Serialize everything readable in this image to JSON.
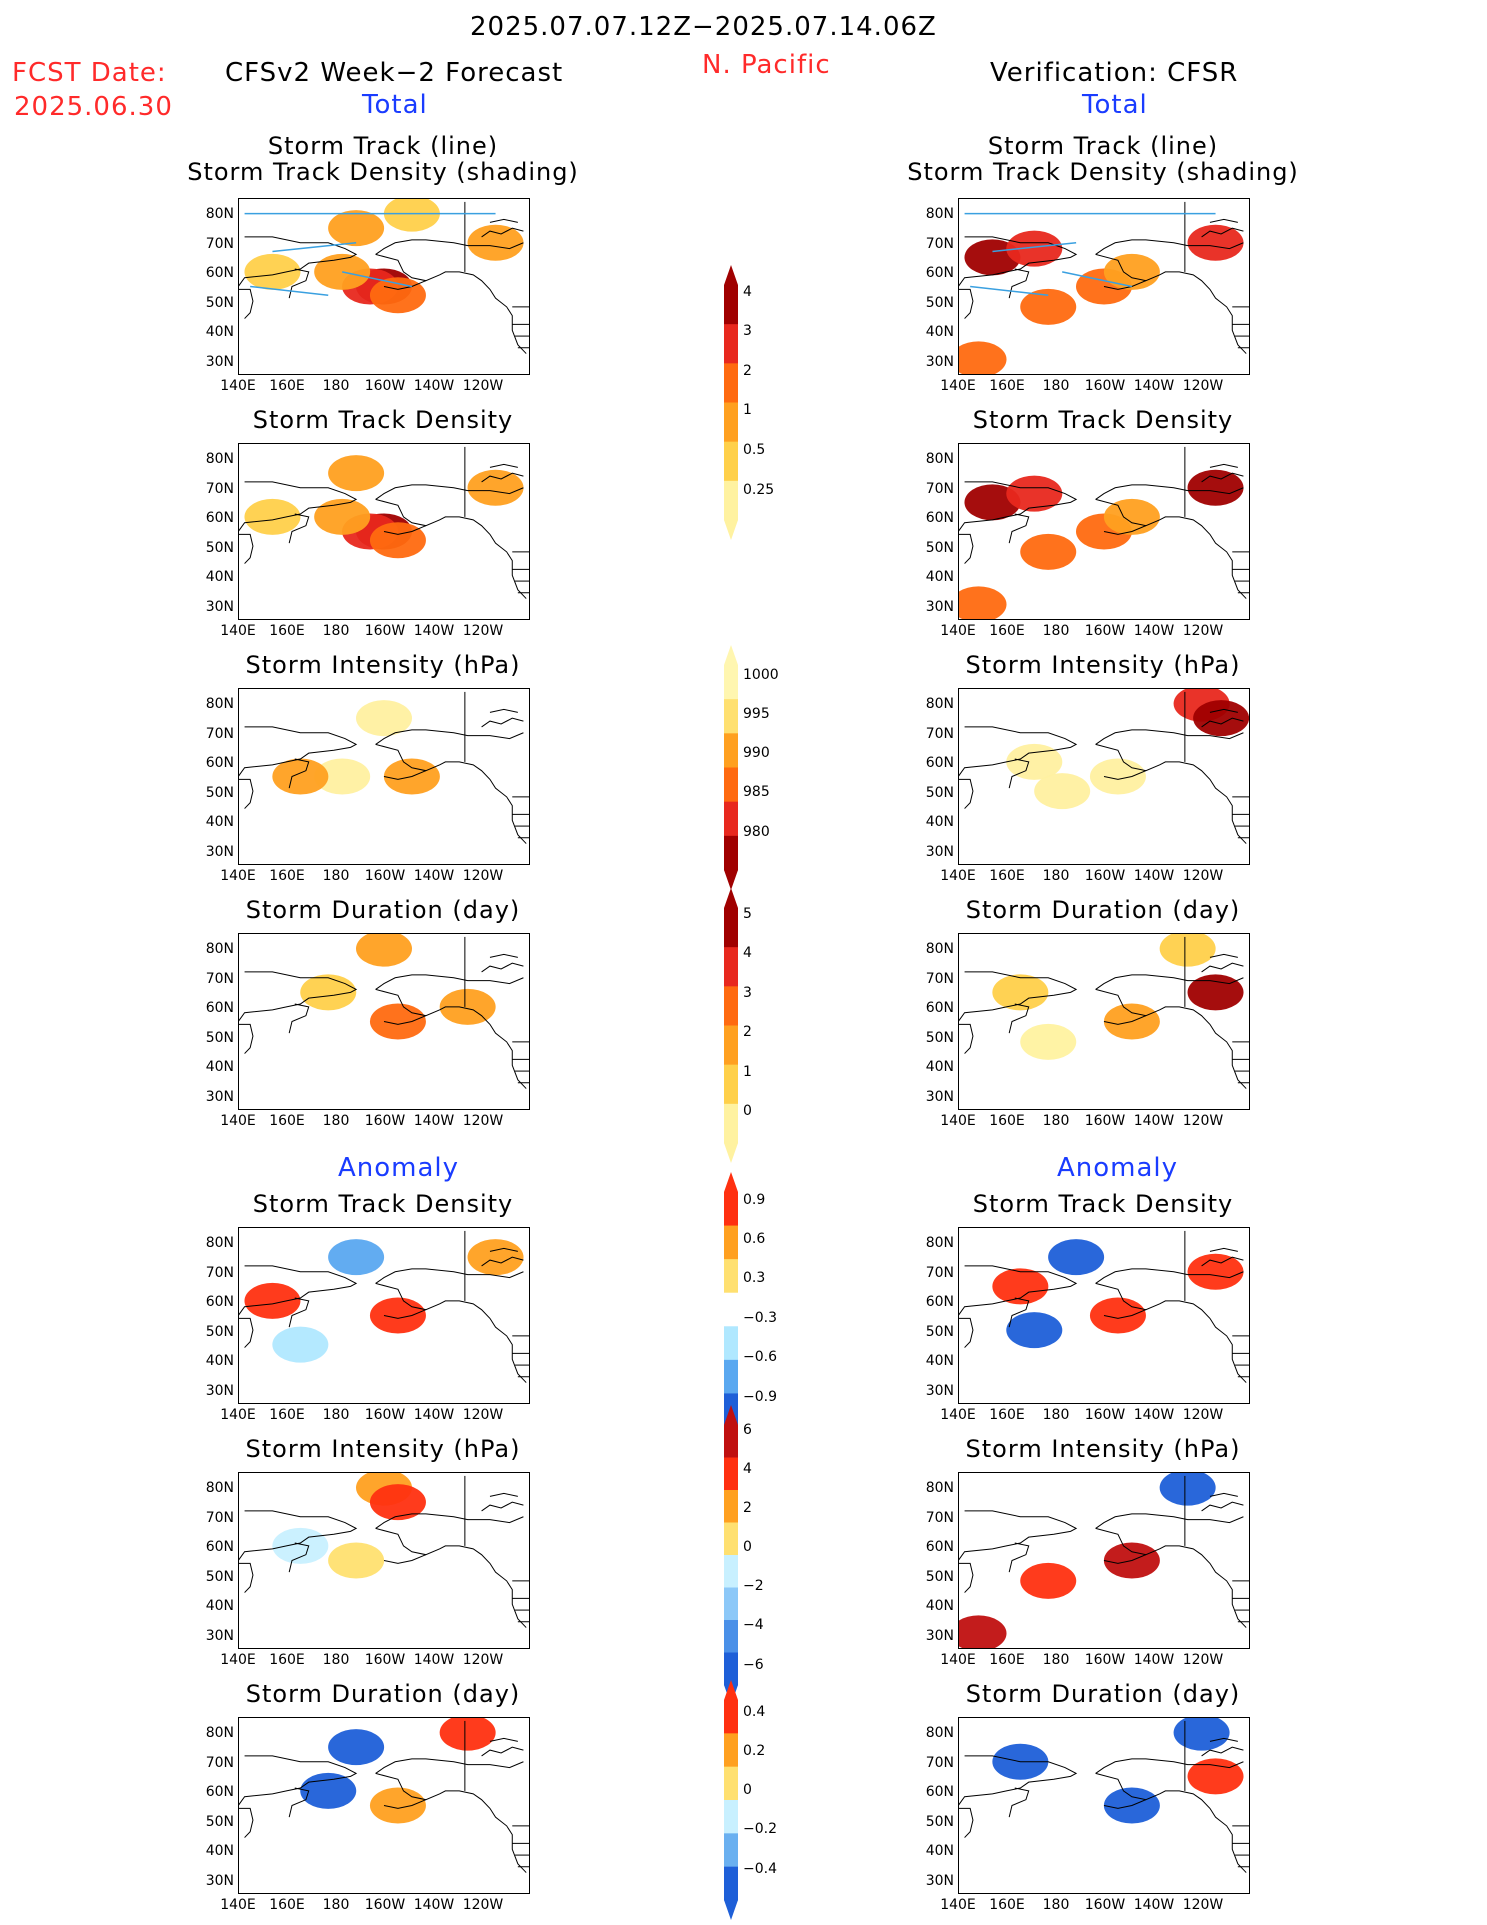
{
  "header": {
    "date_range": "2025.07.07.12Z−2025.07.14.06Z",
    "fcst_label": "FCST Date:",
    "fcst_date": "2025.06.30",
    "left_title": "CFSv2 Week−2 Forecast",
    "region": "N. Pacific",
    "right_title": "Verification: CFSR",
    "total_left": "Total",
    "total_right": "Total",
    "anomaly_left": "Anomaly",
    "anomaly_right": "Anomaly"
  },
  "panel_titles": {
    "track_line": "Storm Track (line)",
    "track_shading": "Storm Track Density (shading)",
    "density": "Storm Track Density",
    "intensity": "Storm Intensity (hPa)",
    "duration": "Storm Duration (day)"
  },
  "axes": {
    "lat_labels": [
      "80N",
      "70N",
      "60N",
      "50N",
      "40N",
      "30N"
    ],
    "lon_labels": [
      "140E",
      "160E",
      "180",
      "160W",
      "140W",
      "120W"
    ]
  },
  "colorbars": {
    "density_total": {
      "labels": [
        "4",
        "3",
        "2",
        "1",
        "0.5",
        "0.25"
      ],
      "colors": [
        "#a00000",
        "#e8281e",
        "#ff6a10",
        "#ffa020",
        "#ffd04a",
        "#fff2a0"
      ]
    },
    "intensity_total": {
      "labels": [
        "1000",
        "995",
        "990",
        "985",
        "980"
      ],
      "colors": [
        "#fff6b0",
        "#ffe070",
        "#ffa020",
        "#ff6a10",
        "#e8281e",
        "#a00000"
      ]
    },
    "duration_total": {
      "labels": [
        "5",
        "4",
        "3",
        "2",
        "1",
        "0"
      ],
      "colors": [
        "#a00000",
        "#e8281e",
        "#ff6a10",
        "#ffa020",
        "#ffd04a",
        "#fff2a0"
      ]
    },
    "density_anom": {
      "labels": [
        "0.9",
        "0.6",
        "0.3",
        "−0.3",
        "−0.6",
        "−0.9"
      ],
      "colors": [
        "#ff3010",
        "#ffa020",
        "#ffe070",
        "#ffffff",
        "#b0e8ff",
        "#5aa8f0",
        "#1e5fd8"
      ]
    },
    "intensity_anom": {
      "labels": [
        "6",
        "4",
        "2",
        "0",
        "−2",
        "−4",
        "−6"
      ],
      "colors": [
        "#c01010",
        "#ff3010",
        "#ffa020",
        "#ffe070",
        "#c8f0ff",
        "#8cc8f8",
        "#4a90e8",
        "#1e5fd8"
      ]
    },
    "duration_anom": {
      "labels": [
        "0.4",
        "0.2",
        "0",
        "−0.2",
        "−0.4"
      ],
      "colors": [
        "#ff3010",
        "#ffa020",
        "#ffe070",
        "#c8f0ff",
        "#6ab0f0",
        "#1e5fd8"
      ]
    }
  },
  "chart_data": {
    "type": "heatmap",
    "title": "2025.07.07.12Z−2025.07.14.06Z",
    "region": "N. Pacific",
    "lat_range": [
      25,
      85
    ],
    "lon_range": [
      140,
      240
    ],
    "panels": [
      {
        "name": "Storm Track Density (shading)",
        "column": "forecast",
        "cells": [
          [
            55,
            190,
            4
          ],
          [
            55,
            185,
            3
          ],
          [
            52,
            195,
            2
          ],
          [
            60,
            175,
            1
          ],
          [
            75,
            180,
            1
          ],
          [
            80,
            200,
            0.5
          ],
          [
            70,
            230,
            1
          ],
          [
            60,
            150,
            0.5
          ]
        ]
      },
      {
        "name": "Storm Track Density (shading)",
        "column": "verification",
        "cells": [
          [
            65,
            150,
            4
          ],
          [
            68,
            165,
            3
          ],
          [
            48,
            170,
            2
          ],
          [
            55,
            190,
            2
          ],
          [
            60,
            200,
            1
          ],
          [
            70,
            230,
            3
          ],
          [
            30,
            145,
            2
          ]
        ]
      },
      {
        "name": "Storm Track Density",
        "column": "forecast",
        "cells": [
          [
            55,
            190,
            4
          ],
          [
            55,
            185,
            3
          ],
          [
            52,
            195,
            2
          ],
          [
            60,
            175,
            1
          ],
          [
            75,
            180,
            1
          ],
          [
            70,
            230,
            1
          ],
          [
            60,
            150,
            0.5
          ]
        ]
      },
      {
        "name": "Storm Track Density",
        "column": "verification",
        "cells": [
          [
            65,
            150,
            4
          ],
          [
            68,
            165,
            3
          ],
          [
            48,
            170,
            2
          ],
          [
            55,
            190,
            2
          ],
          [
            60,
            200,
            1
          ],
          [
            70,
            230,
            4
          ],
          [
            30,
            145,
            2
          ]
        ]
      },
      {
        "name": "Storm Intensity (hPa)",
        "column": "forecast",
        "cells": [
          [
            75,
            190,
            1000
          ],
          [
            55,
            175,
            1000
          ],
          [
            55,
            160,
            995
          ],
          [
            55,
            200,
            995
          ]
        ]
      },
      {
        "name": "Storm Intensity (hPa)",
        "column": "verification",
        "cells": [
          [
            80,
            225,
            985
          ],
          [
            75,
            232,
            980
          ],
          [
            60,
            165,
            1000
          ],
          [
            50,
            175,
            1000
          ],
          [
            55,
            195,
            1000
          ]
        ]
      },
      {
        "name": "Storm Duration (day)",
        "column": "forecast",
        "cells": [
          [
            80,
            190,
            2
          ],
          [
            65,
            170,
            1
          ],
          [
            55,
            195,
            3
          ],
          [
            60,
            220,
            2
          ]
        ]
      },
      {
        "name": "Storm Duration (day)",
        "column": "verification",
        "cells": [
          [
            80,
            220,
            1
          ],
          [
            65,
            160,
            1
          ],
          [
            55,
            200,
            2
          ],
          [
            65,
            230,
            5
          ],
          [
            48,
            170,
            0.5
          ]
        ]
      },
      {
        "name": "Storm Track Density Anomaly",
        "column": "forecast",
        "cells": [
          [
            75,
            180,
            -0.6
          ],
          [
            55,
            195,
            0.9
          ],
          [
            60,
            150,
            0.9
          ],
          [
            45,
            160,
            -0.3
          ],
          [
            75,
            230,
            0.6
          ]
        ]
      },
      {
        "name": "Storm Track Density Anomaly",
        "column": "verification",
        "cells": [
          [
            75,
            180,
            -0.9
          ],
          [
            65,
            160,
            0.9
          ],
          [
            70,
            230,
            0.9
          ],
          [
            50,
            165,
            -0.9
          ],
          [
            55,
            195,
            0.9
          ]
        ]
      },
      {
        "name": "Storm Intensity Anomaly",
        "column": "forecast",
        "cells": [
          [
            80,
            190,
            2
          ],
          [
            75,
            195,
            4
          ],
          [
            55,
            180,
            0
          ],
          [
            60,
            160,
            -2
          ]
        ]
      },
      {
        "name": "Storm Intensity Anomaly",
        "column": "verification",
        "cells": [
          [
            80,
            220,
            -6
          ],
          [
            55,
            200,
            6
          ],
          [
            48,
            170,
            4
          ],
          [
            30,
            145,
            6
          ]
        ]
      },
      {
        "name": "Storm Duration Anomaly",
        "column": "forecast",
        "cells": [
          [
            75,
            180,
            -0.4
          ],
          [
            60,
            170,
            -0.4
          ],
          [
            55,
            195,
            0.2
          ],
          [
            80,
            220,
            0.4
          ]
        ]
      },
      {
        "name": "Storm Duration Anomaly",
        "column": "verification",
        "cells": [
          [
            70,
            160,
            -0.4
          ],
          [
            55,
            200,
            -0.4
          ],
          [
            65,
            230,
            0.4
          ],
          [
            80,
            225,
            -0.4
          ]
        ]
      }
    ]
  }
}
